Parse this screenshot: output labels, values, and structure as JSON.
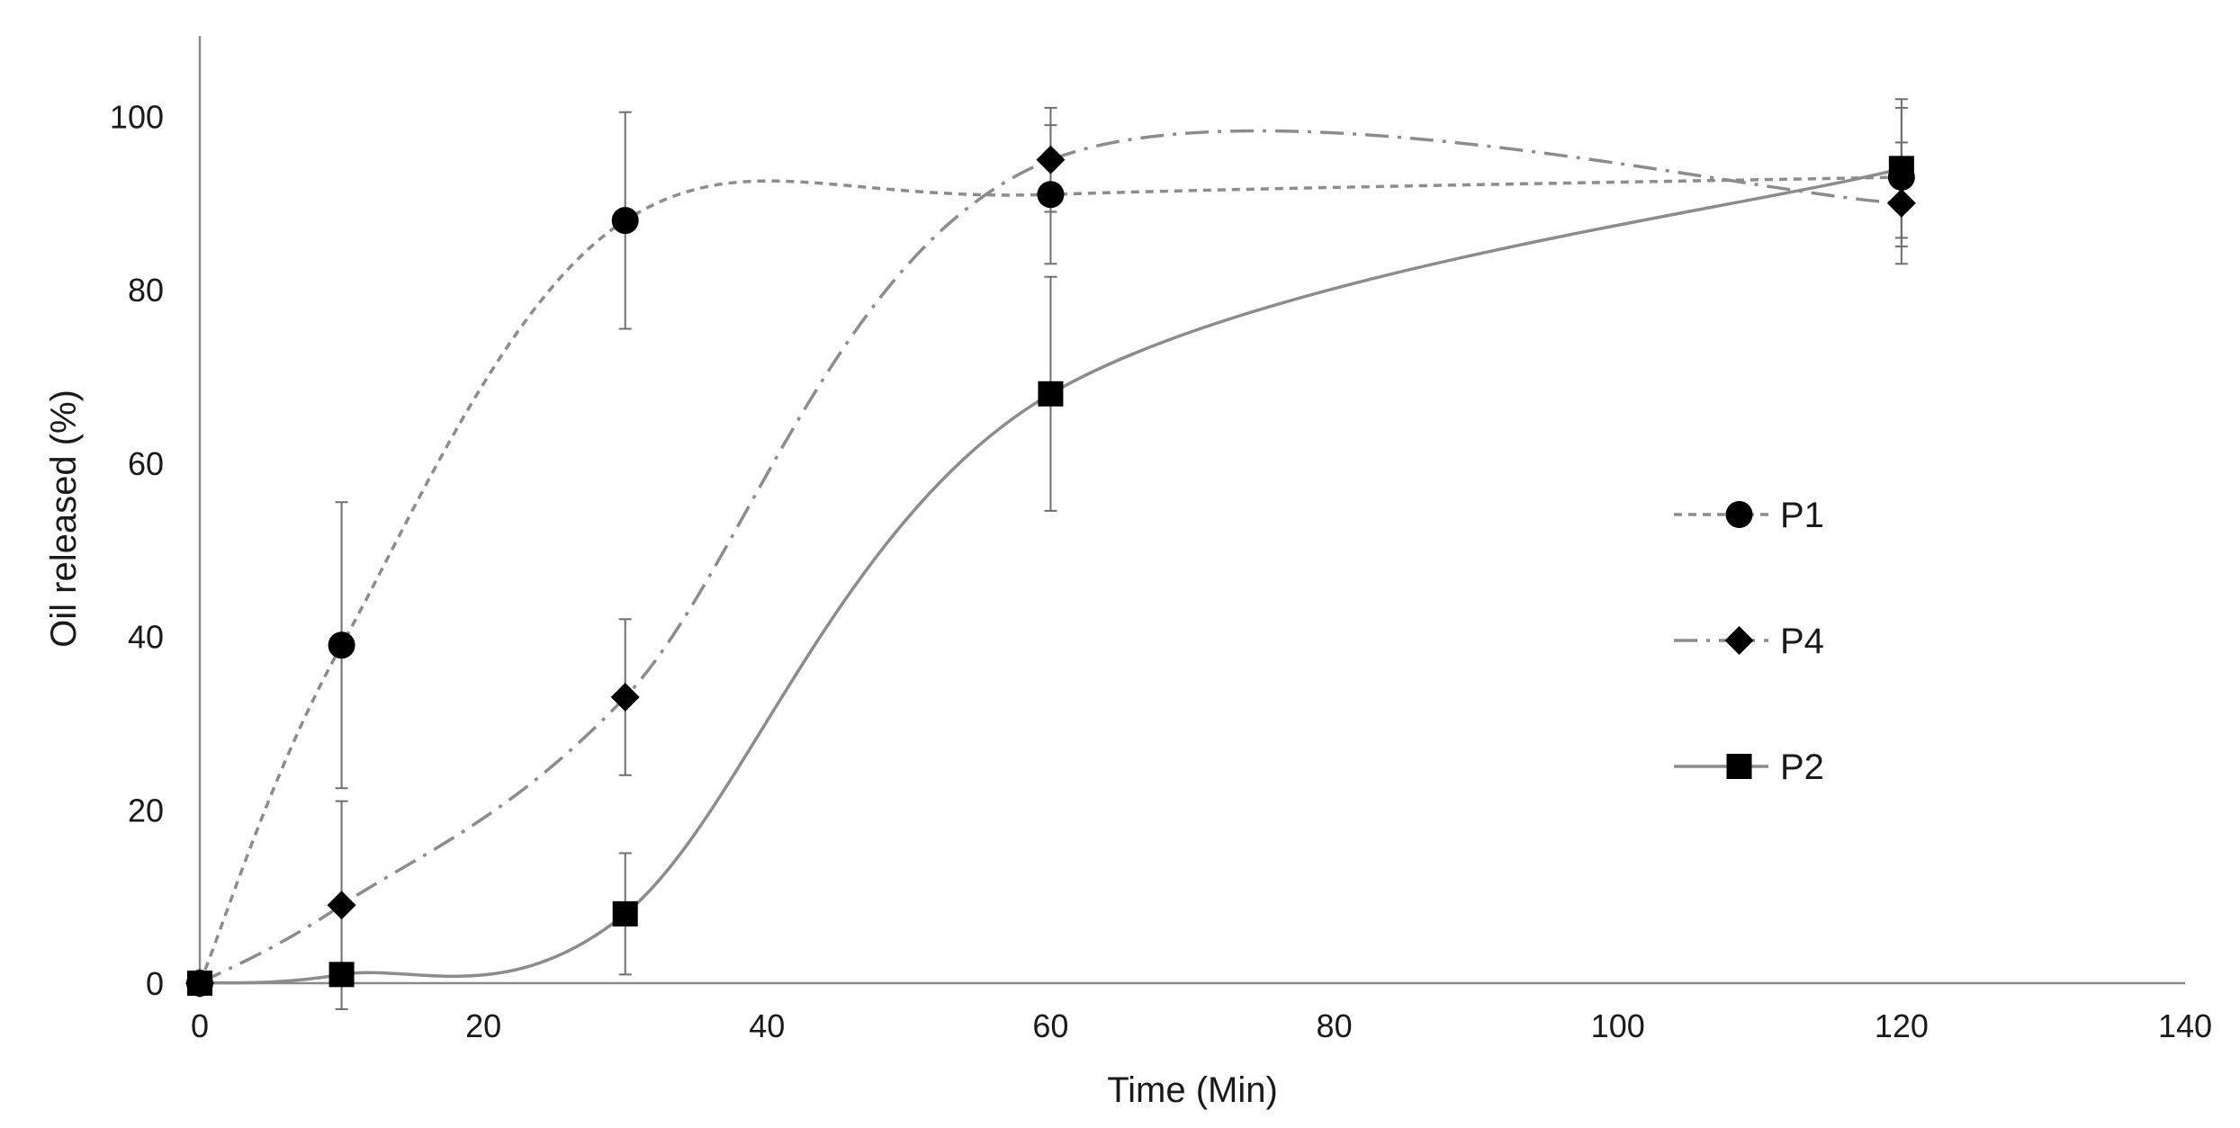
{
  "chart_data": {
    "type": "line",
    "title": "",
    "xlabel": "Time (Min)",
    "ylabel": "Oil released (%)",
    "xlim": [
      0,
      140
    ],
    "ylim": [
      0,
      110
    ],
    "xticks": [
      0,
      20,
      40,
      60,
      80,
      100,
      120,
      140
    ],
    "yticks": [
      0,
      20,
      40,
      60,
      80,
      100
    ],
    "xtick_labels": [
      "0",
      "20",
      "40",
      "60",
      "80",
      "100",
      "120",
      "140"
    ],
    "ytick_labels": [
      "0",
      "20",
      "40",
      "60",
      "80",
      "100"
    ],
    "grid": false,
    "legend_position": "right",
    "x": [
      0,
      10,
      30,
      60,
      120
    ],
    "series": [
      {
        "name": "P1",
        "marker": "circle",
        "line_style": "dashed",
        "color": "#8c8c8c",
        "values": [
          0,
          39,
          88,
          91,
          93
        ],
        "error": [
          0,
          16.5,
          12.5,
          8,
          8
        ]
      },
      {
        "name": "P4",
        "marker": "diamond",
        "line_style": "dash-dot",
        "color": "#8c8c8c",
        "values": [
          0,
          9,
          33,
          95,
          90
        ],
        "error": [
          0,
          12,
          9,
          6,
          7
        ]
      },
      {
        "name": "P2",
        "marker": "square",
        "line_style": "solid",
        "color": "#8c8c8c",
        "values": [
          0,
          1,
          8,
          68,
          94
        ],
        "error": [
          0,
          0,
          7,
          13.5,
          8
        ]
      }
    ]
  }
}
